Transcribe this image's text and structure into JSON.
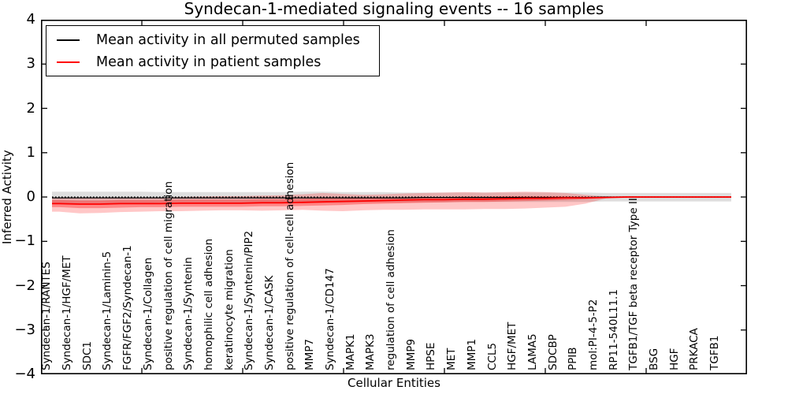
{
  "chart_data": {
    "type": "line",
    "title": "Syndecan-1-mediated signaling events -- 16 samples",
    "xlabel": "Cellular Entities",
    "ylabel": "Inferred Activity",
    "ylim": [
      -4,
      4
    ],
    "ytick_labels": [
      "4",
      "3",
      "2",
      "1",
      "0",
      "−1",
      "−2",
      "−3",
      "−4"
    ],
    "grid": false,
    "legend_position": "upper left",
    "zero_line": {
      "y": 0,
      "style": "dotted",
      "color": "#000000"
    },
    "categories": [
      "Syndecan-1/RANTES",
      "Syndecan-1/HGF/MET",
      "SDC1",
      "Syndecan-1/Laminin-5",
      "FGFR/FGF2/Syndecan-1",
      "Syndecan-1/Collagen",
      "positive regulation of cell migration",
      "Syndecan-1/Syntenin",
      "homophilic cell adhesion",
      "keratinocyte migration",
      "Syndecan-1/Syntenin/PIP2",
      "Syndecan-1/CASK",
      "positive regulation of cell-cell adhesion",
      "MMP7",
      "Syndecan-1/CD147",
      "MAPK1",
      "MAPK3",
      "regulation of cell adhesion",
      "MMP9",
      "HPSE",
      "MET",
      "MMP1",
      "CCL5",
      "HGF/MET",
      "LAMA5",
      "SDCBP",
      "PPIB",
      "mol:PI-4-5-P2",
      "RP11-540L11.1",
      "TGFB1/TGF beta receptor Type II",
      "BSG",
      "HGF",
      "PRKACA",
      "TGFB1"
    ],
    "series": [
      {
        "name": "Mean activity in all permuted samples",
        "color": "#000000",
        "values": [
          -0.02,
          -0.02,
          -0.02,
          -0.02,
          -0.02,
          -0.02,
          -0.02,
          -0.02,
          -0.02,
          -0.02,
          -0.02,
          -0.02,
          -0.02,
          -0.02,
          -0.02,
          -0.02,
          -0.02,
          -0.02,
          -0.01,
          -0.01,
          -0.01,
          -0.01,
          -0.01,
          -0.01,
          -0.01,
          -0.01,
          -0.01,
          0,
          0,
          0,
          0,
          0,
          0,
          0
        ],
        "band_hi": [
          0.12,
          0.12,
          0.12,
          0.12,
          0.12,
          0.11,
          0.11,
          0.11,
          0.11,
          0.11,
          0.11,
          0.11,
          0.12,
          0.12,
          0.11,
          0.11,
          0.11,
          0.1,
          0.1,
          0.1,
          0.1,
          0.1,
          0.1,
          0.1,
          0.1,
          0.1,
          0.1,
          0.09,
          0.09,
          0.09,
          0.09,
          0.09,
          0.09,
          0.09
        ],
        "band_lo": [
          -0.14,
          -0.14,
          -0.14,
          -0.14,
          -0.14,
          -0.13,
          -0.13,
          -0.13,
          -0.13,
          -0.13,
          -0.13,
          -0.13,
          -0.13,
          -0.13,
          -0.13,
          -0.12,
          -0.12,
          -0.12,
          -0.12,
          -0.12,
          -0.11,
          -0.11,
          -0.11,
          -0.11,
          -0.11,
          -0.11,
          -0.11,
          -0.1,
          -0.1,
          -0.1,
          -0.1,
          -0.1,
          -0.1,
          -0.1
        ]
      },
      {
        "name": "Mean activity in patient samples",
        "color": "#ff0000",
        "values": [
          -0.15,
          -0.16,
          -0.16,
          -0.15,
          -0.15,
          -0.15,
          -0.14,
          -0.14,
          -0.14,
          -0.14,
          -0.13,
          -0.13,
          -0.12,
          -0.11,
          -0.1,
          -0.09,
          -0.08,
          -0.07,
          -0.06,
          -0.06,
          -0.05,
          -0.05,
          -0.04,
          -0.03,
          -0.03,
          -0.02,
          -0.02,
          -0.01,
          0,
          0,
          0,
          0,
          0,
          0
        ],
        "band_outer_hi": [
          -0.02,
          -0.02,
          -0.02,
          -0.02,
          -0.01,
          -0.01,
          0,
          0.01,
          0.02,
          0.02,
          0.03,
          0.04,
          0.06,
          0.09,
          0.07,
          0.05,
          0.06,
          0.08,
          0.09,
          0.1,
          0.11,
          0.1,
          0.11,
          0.12,
          0.11,
          0.09,
          0.05,
          0.01,
          0.01,
          0.01,
          0.01,
          0.01,
          0.01,
          0.01
        ],
        "band_outer_lo": [
          -0.33,
          -0.37,
          -0.36,
          -0.34,
          -0.33,
          -0.32,
          -0.32,
          -0.31,
          -0.3,
          -0.3,
          -0.31,
          -0.3,
          -0.29,
          -0.31,
          -0.32,
          -0.3,
          -0.29,
          -0.29,
          -0.28,
          -0.28,
          -0.28,
          -0.27,
          -0.27,
          -0.26,
          -0.24,
          -0.22,
          -0.15,
          -0.03,
          -0.02,
          -0.02,
          -0.02,
          -0.02,
          -0.02,
          -0.02
        ],
        "band_inner_hi": [
          -0.07,
          -0.08,
          -0.08,
          -0.07,
          -0.07,
          -0.07,
          -0.06,
          -0.06,
          -0.06,
          -0.06,
          -0.05,
          -0.05,
          -0.04,
          -0.03,
          -0.03,
          -0.02,
          -0.02,
          -0.01,
          0,
          0,
          0.01,
          0.01,
          0.02,
          0.02,
          0.02,
          0.02,
          0.01,
          0,
          0.01,
          0.01,
          0.01,
          0.01,
          0.01,
          0.01
        ],
        "band_inner_lo": [
          -0.23,
          -0.25,
          -0.25,
          -0.24,
          -0.23,
          -0.23,
          -0.22,
          -0.22,
          -0.22,
          -0.22,
          -0.21,
          -0.21,
          -0.2,
          -0.19,
          -0.18,
          -0.16,
          -0.15,
          -0.14,
          -0.13,
          -0.12,
          -0.11,
          -0.11,
          -0.1,
          -0.09,
          -0.08,
          -0.07,
          -0.05,
          -0.02,
          -0.01,
          -0.01,
          -0.01,
          -0.01,
          -0.01,
          -0.01
        ]
      }
    ]
  },
  "legend": {
    "items": [
      {
        "label": "Mean activity in all permuted samples",
        "color": "#000000"
      },
      {
        "label": "Mean activity in patient samples",
        "color": "#ff0000"
      }
    ]
  }
}
